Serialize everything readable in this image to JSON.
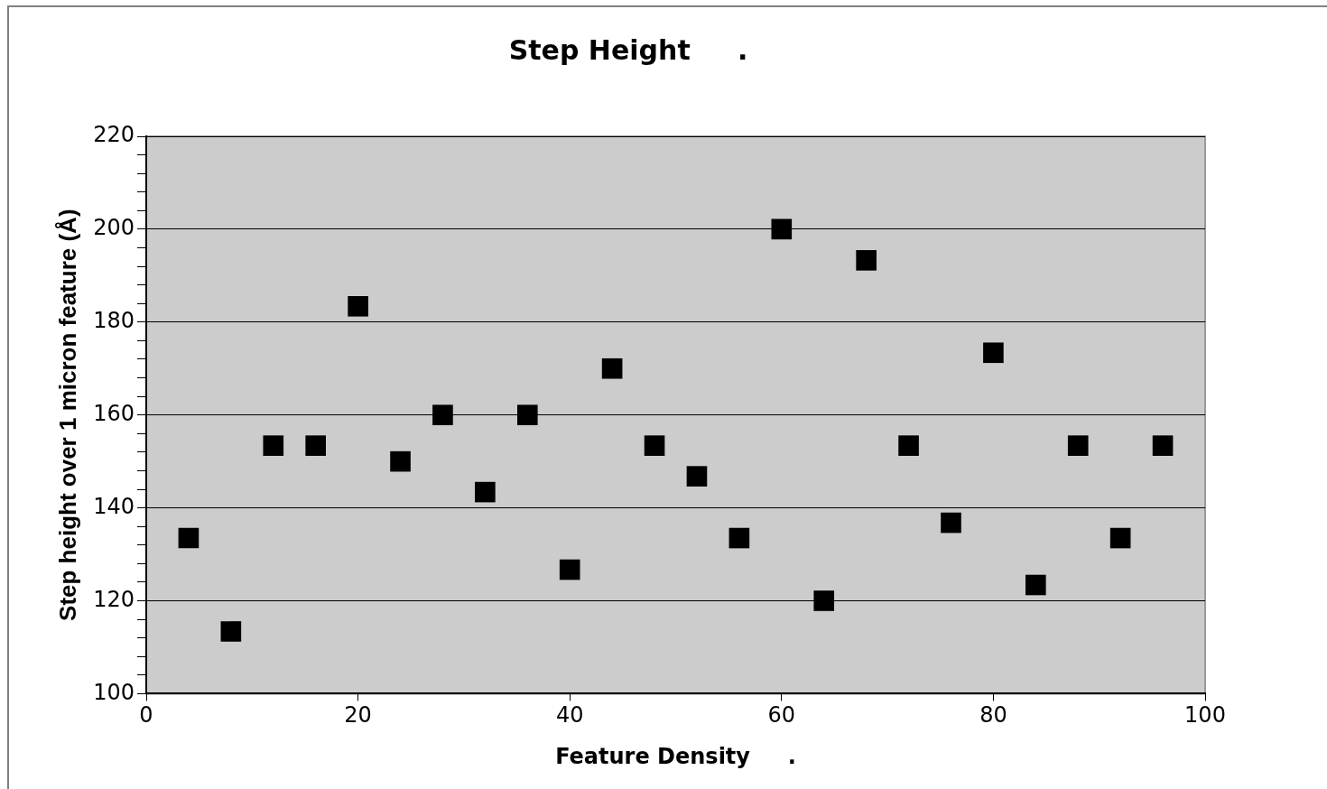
{
  "chart_data": {
    "type": "scatter",
    "title": "Step Height     .",
    "xlabel": "Feature Density     .",
    "ylabel": "Step height over 1 micron feature (Å)",
    "x": [
      4,
      8,
      12,
      16,
      20,
      24,
      28,
      32,
      36,
      40,
      44,
      48,
      52,
      56,
      60,
      64,
      68,
      72,
      76,
      80,
      84,
      88,
      92,
      96
    ],
    "series": [
      {
        "color": "#000000",
        "values": [
          133.5,
          113.4,
          153.4,
          153.4,
          183.4,
          150,
          160,
          143.4,
          160,
          126.7,
          170,
          153.4,
          146.8,
          133.5,
          200,
          120,
          193.3,
          153.4,
          136.8,
          173.4,
          123.4,
          153.4,
          133.5,
          153.4
        ]
      }
    ],
    "xlim": [
      0,
      100
    ],
    "xticks": [
      0,
      20,
      40,
      60,
      80,
      100
    ],
    "ylim": [
      100,
      220
    ],
    "yticks": [
      100,
      {
        "value": 104,
        "label": null
      },
      {
        "value": 108,
        "label": null
      },
      {
        "value": 112,
        "label": null
      },
      {
        "value": 116,
        "label": null
      },
      120,
      {
        "value": 124,
        "label": null
      },
      {
        "value": 128,
        "label": null
      },
      {
        "value": 132,
        "label": null
      },
      {
        "value": 136,
        "label": null
      },
      140,
      {
        "value": 144,
        "label": null
      },
      {
        "value": 148,
        "label": null
      },
      {
        "value": 152,
        "label": null
      },
      {
        "value": 156,
        "label": null
      },
      160,
      {
        "value": 164,
        "label": null
      },
      {
        "value": 168,
        "label": null
      },
      {
        "value": 172,
        "label": null
      },
      {
        "value": 176,
        "label": null
      },
      180,
      {
        "value": 184,
        "label": null
      },
      {
        "value": 188,
        "label": null
      },
      {
        "value": 192,
        "label": null
      },
      {
        "value": 196,
        "label": null
      },
      200,
      {
        "value": 204,
        "label": null
      },
      {
        "value": 208,
        "label": null
      },
      {
        "value": 212,
        "label": null
      },
      {
        "value": 216,
        "label": null
      },
      220
    ],
    "grid": "y",
    "marker": "square",
    "legend": false
  }
}
